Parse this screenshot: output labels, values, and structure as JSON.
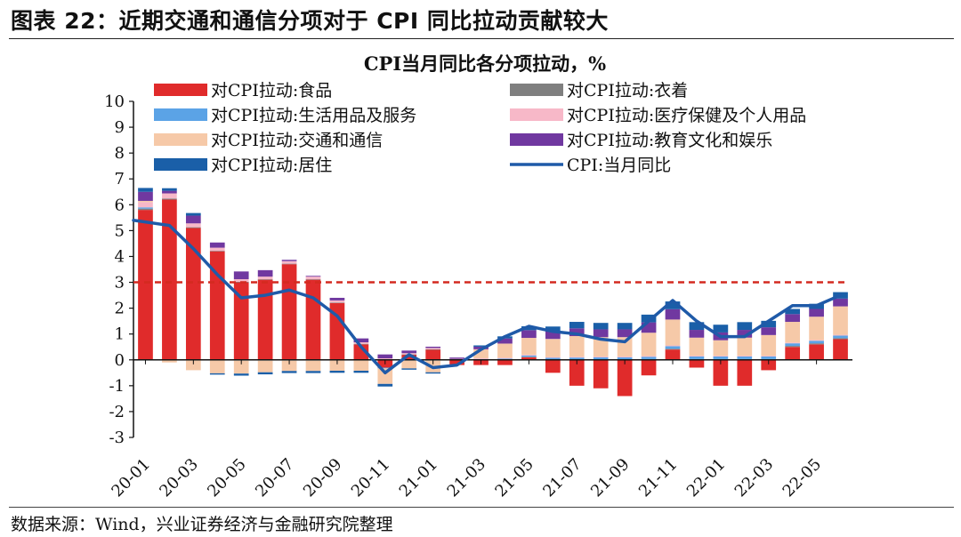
{
  "figure_title": "图表 22：近期交通和通信分项对于 CPI 同比拉动贡献较大",
  "source": "数据来源：Wind，兴业证券经济与金融研究院整理",
  "chart_data": {
    "type": "bar",
    "title": "CPI当月同比各分项拉动，%",
    "ylim": [
      -3,
      10
    ],
    "yticks": [
      -3,
      -2,
      -1,
      0,
      1,
      2,
      3,
      4,
      5,
      6,
      7,
      8,
      9,
      10
    ],
    "grid": false,
    "legend_position": "top",
    "reference_line": {
      "value": 3,
      "style": "dashed",
      "color": "#d42a20"
    },
    "categories": [
      "20-01",
      "20-02",
      "20-03",
      "20-04",
      "20-05",
      "20-06",
      "20-07",
      "20-08",
      "20-09",
      "20-10",
      "20-11",
      "20-12",
      "21-01",
      "21-02",
      "21-03",
      "21-04",
      "21-05",
      "21-06",
      "21-07",
      "21-08",
      "21-09",
      "21-10",
      "21-11",
      "21-12",
      "22-01",
      "22-02",
      "22-03",
      "22-04",
      "22-05",
      "22-06"
    ],
    "xtick_labels": [
      "20-01",
      "20-03",
      "20-05",
      "20-07",
      "20-09",
      "20-11",
      "21-01",
      "21-03",
      "21-05",
      "21-07",
      "21-09",
      "21-11",
      "22-01",
      "22-03",
      "22-05"
    ],
    "series": [
      {
        "name": "对CPI拉动:食品",
        "kind": "bar",
        "color": "#e02b2b",
        "values": [
          5.8,
          6.2,
          5.1,
          4.2,
          3.0,
          3.1,
          3.7,
          3.1,
          2.2,
          0.6,
          -0.3,
          0.2,
          0.4,
          -0.2,
          -0.2,
          -0.2,
          0.1,
          -0.5,
          -1.0,
          -1.1,
          -1.4,
          -0.6,
          0.4,
          -0.3,
          -1.0,
          -1.0,
          -0.4,
          0.5,
          0.6,
          0.8
        ]
      },
      {
        "name": "对CPI拉动:衣着",
        "kind": "bar",
        "color": "#7f7f7f",
        "values": [
          0.05,
          0.04,
          0.03,
          0.02,
          0.02,
          0.02,
          0.02,
          0.02,
          0.02,
          0.02,
          0.01,
          0.01,
          0.01,
          0.01,
          0.01,
          0.01,
          0.02,
          0.02,
          0.02,
          0.02,
          0.02,
          0.03,
          0.03,
          0.03,
          0.03,
          0.03,
          0.03,
          0.04,
          0.04,
          0.04
        ]
      },
      {
        "name": "对CPI拉动:生活用品及服务",
        "kind": "bar",
        "color": "#5ba3e6",
        "values": [
          0.05,
          0.0,
          0.0,
          -0.02,
          -0.03,
          -0.03,
          -0.03,
          -0.03,
          -0.02,
          -0.02,
          -0.03,
          -0.03,
          -0.03,
          0.0,
          0.02,
          0.04,
          0.05,
          0.06,
          0.07,
          0.08,
          0.08,
          0.09,
          0.1,
          0.1,
          0.1,
          0.1,
          0.1,
          0.1,
          0.1,
          0.1
        ]
      },
      {
        "name": "对CPI拉动:医疗保健及个人用品",
        "kind": "bar",
        "color": "#f7b8c8",
        "values": [
          0.2,
          0.2,
          0.15,
          0.12,
          0.1,
          0.1,
          0.1,
          0.1,
          0.08,
          0.06,
          0.05,
          0.05,
          0.05,
          0.03,
          0.03,
          0.03,
          0.03,
          0.03,
          0.03,
          0.03,
          0.03,
          0.03,
          0.03,
          0.03,
          0.03,
          0.03,
          0.03,
          0.03,
          0.03,
          0.03
        ]
      },
      {
        "name": "对CPI拉动:交通和通信",
        "kind": "bar",
        "color": "#f6c9a8",
        "values": [
          0.05,
          -0.1,
          -0.4,
          -0.5,
          -0.5,
          -0.45,
          -0.4,
          -0.4,
          -0.4,
          -0.4,
          -0.6,
          -0.3,
          -0.45,
          0.0,
          0.35,
          0.55,
          0.65,
          0.7,
          0.8,
          0.75,
          0.75,
          0.9,
          1.0,
          0.7,
          0.6,
          0.7,
          0.8,
          0.8,
          0.9,
          1.1
        ]
      },
      {
        "name": "对CPI拉动:教育文化和娱乐",
        "kind": "bar",
        "color": "#7038a0",
        "values": [
          0.35,
          0.1,
          0.3,
          0.2,
          0.3,
          0.25,
          0.05,
          0.03,
          0.1,
          0.15,
          0.15,
          0.1,
          0.05,
          0.05,
          0.1,
          0.2,
          0.3,
          0.3,
          0.3,
          0.3,
          0.3,
          0.4,
          0.4,
          0.3,
          0.3,
          0.3,
          0.3,
          0.3,
          0.3,
          0.3
        ]
      },
      {
        "name": "对CPI拉动:居住",
        "kind": "bar",
        "color": "#1a5fa8",
        "values": [
          0.15,
          0.1,
          0.1,
          -0.05,
          -0.08,
          -0.08,
          -0.08,
          -0.08,
          -0.08,
          -0.08,
          -0.1,
          -0.05,
          -0.05,
          0.0,
          0.05,
          0.08,
          0.15,
          0.18,
          0.25,
          0.25,
          0.25,
          0.3,
          0.3,
          0.3,
          0.3,
          0.3,
          0.25,
          0.2,
          0.2,
          0.25
        ]
      },
      {
        "name": "CPI:当月同比",
        "kind": "line",
        "color": "#1f5aa8",
        "values": [
          5.4,
          5.2,
          4.3,
          3.3,
          2.4,
          2.5,
          2.7,
          2.4,
          1.7,
          0.5,
          -0.5,
          0.2,
          -0.3,
          -0.2,
          0.4,
          0.9,
          1.3,
          1.1,
          1.0,
          0.8,
          0.7,
          1.5,
          2.3,
          1.5,
          0.9,
          0.9,
          1.5,
          2.1,
          2.1,
          2.5
        ]
      }
    ]
  }
}
